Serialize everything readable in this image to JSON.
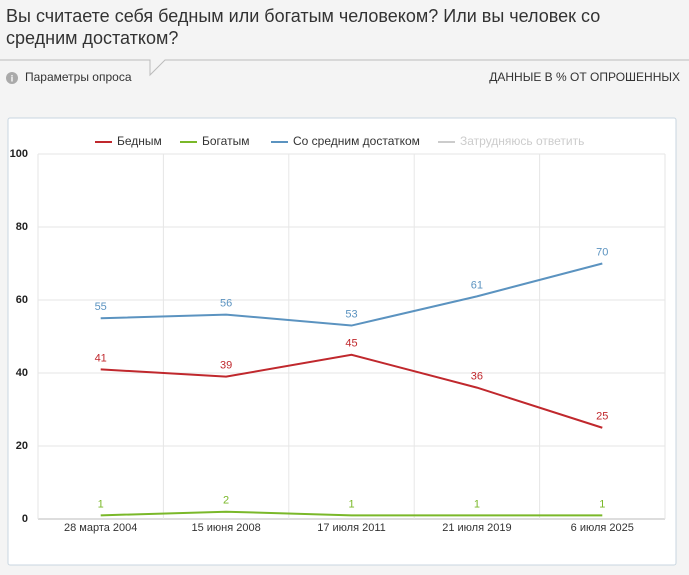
{
  "header": {
    "title_line1": "Вы считаете себя бедным или богатым человеком? Или вы человек со",
    "title_line2": "средним достатком?",
    "params": "Параметры опроса",
    "units_note": "ДАННЫЕ В % ОТ ОПРОШЕННЫХ"
  },
  "chart_data": {
    "type": "line",
    "categories": [
      "28 марта 2004",
      "15 июня 2008",
      "17 июля 2011",
      "21 июля 2019",
      "6 июля 2025"
    ],
    "series": [
      {
        "name": "Бедным",
        "color": "#c0282d",
        "values": [
          41,
          39,
          45,
          36,
          25
        ]
      },
      {
        "name": "Богатым",
        "color": "#7ab829",
        "values": [
          1,
          2,
          1,
          1,
          1
        ]
      },
      {
        "name": "Со средним достатком",
        "color": "#5b93c0",
        "values": [
          55,
          56,
          53,
          61,
          70
        ]
      },
      {
        "name": "Затрудняюсь ответить",
        "color": "#cccccc",
        "values": [
          null,
          null,
          null,
          null,
          null
        ],
        "visible": false
      }
    ],
    "ylim": [
      0,
      100
    ],
    "yticks": [
      0,
      20,
      40,
      60,
      80,
      100
    ],
    "grid": true,
    "legend": "top"
  }
}
